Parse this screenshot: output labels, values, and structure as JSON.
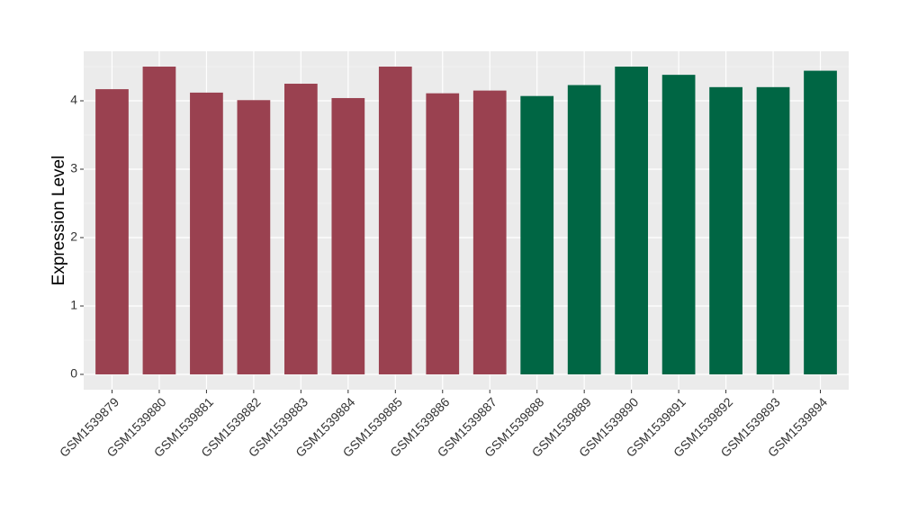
{
  "chart_data": {
    "type": "bar",
    "y_label": "Expression Level",
    "categories": [
      "GSM1539879",
      "GSM1539880",
      "GSM1539881",
      "GSM1539882",
      "GSM1539883",
      "GSM1539884",
      "GSM1539885",
      "GSM1539886",
      "GSM1539887",
      "GSM1539888",
      "GSM1539889",
      "GSM1539890",
      "GSM1539891",
      "GSM1539892",
      "GSM1539893",
      "GSM1539894"
    ],
    "values": [
      4.17,
      4.5,
      4.12,
      4.01,
      4.25,
      4.04,
      4.5,
      4.11,
      4.15,
      4.07,
      4.23,
      4.5,
      4.38,
      4.2,
      4.2,
      4.44
    ],
    "colors": [
      "#9a4150",
      "#9a4150",
      "#9a4150",
      "#9a4150",
      "#9a4150",
      "#9a4150",
      "#9a4150",
      "#9a4150",
      "#9a4150",
      "#006644",
      "#006644",
      "#006644",
      "#006644",
      "#006644",
      "#006644",
      "#006644"
    ],
    "ylim": [
      -0.224,
      4.724
    ],
    "yticks": [
      0,
      1,
      2,
      3,
      4
    ],
    "grid": true
  }
}
